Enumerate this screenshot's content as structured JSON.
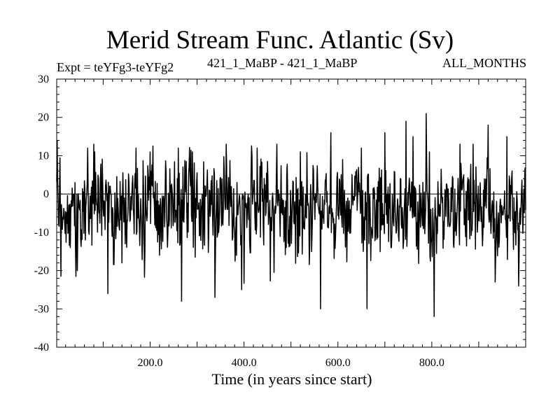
{
  "chart_data": {
    "type": "line",
    "title": "Merid Stream Func. Atlantic (Sv)",
    "subtitle_left": "Expt = teYFg3-teYFg2",
    "subtitle_center": "421_1_MaBP - 421_1_MaBP",
    "subtitle_right": "ALL_MONTHS",
    "xlabel": "Time (in years since start)",
    "ylabel": "",
    "xlim": [
      1,
      1000
    ],
    "ylim": [
      -40,
      30
    ],
    "xticks": [
      200,
      400,
      600,
      800
    ],
    "xtick_labels": [
      "200.0",
      "400.0",
      "600.0",
      "800.0"
    ],
    "yticks": [
      -40,
      -30,
      -20,
      -10,
      0,
      10,
      20,
      30
    ],
    "ytick_labels": [
      "-40",
      "-30",
      "-20",
      "-10",
      "0",
      "10",
      "20",
      "30"
    ],
    "zero_line": true,
    "series": [
      {
        "name": "Merid Stream Func. Atlantic",
        "n_points": 1000,
        "mean": -4,
        "std": 6.5,
        "extremes": [
          {
            "x": 2,
            "y": 14
          },
          {
            "x": 30,
            "y": -14
          },
          {
            "x": 45,
            "y": -20
          },
          {
            "x": 37,
            "y": 0
          },
          {
            "x": 67,
            "y": 12
          },
          {
            "x": 82,
            "y": 11
          },
          {
            "x": 110,
            "y": -26
          },
          {
            "x": 140,
            "y": -18
          },
          {
            "x": 170,
            "y": 12
          },
          {
            "x": 200,
            "y": 11
          },
          {
            "x": 260,
            "y": 12
          },
          {
            "x": 267,
            "y": -28
          },
          {
            "x": 290,
            "y": 11
          },
          {
            "x": 338,
            "y": -27
          },
          {
            "x": 362,
            "y": 13
          },
          {
            "x": 395,
            "y": -25
          },
          {
            "x": 428,
            "y": 12
          },
          {
            "x": 470,
            "y": 13
          },
          {
            "x": 520,
            "y": 11
          },
          {
            "x": 563,
            "y": -30
          },
          {
            "x": 585,
            "y": 16
          },
          {
            "x": 610,
            "y": 9
          },
          {
            "x": 650,
            "y": 12
          },
          {
            "x": 662,
            "y": -30
          },
          {
            "x": 700,
            "y": 16
          },
          {
            "x": 745,
            "y": 19
          },
          {
            "x": 760,
            "y": 15
          },
          {
            "x": 788,
            "y": 21
          },
          {
            "x": 795,
            "y": 11
          },
          {
            "x": 805,
            "y": -32
          },
          {
            "x": 860,
            "y": 13
          },
          {
            "x": 920,
            "y": 18
          },
          {
            "x": 935,
            "y": -23
          },
          {
            "x": 960,
            "y": 15
          },
          {
            "x": 985,
            "y": -24
          },
          {
            "x": 998,
            "y": 6
          }
        ]
      }
    ]
  }
}
